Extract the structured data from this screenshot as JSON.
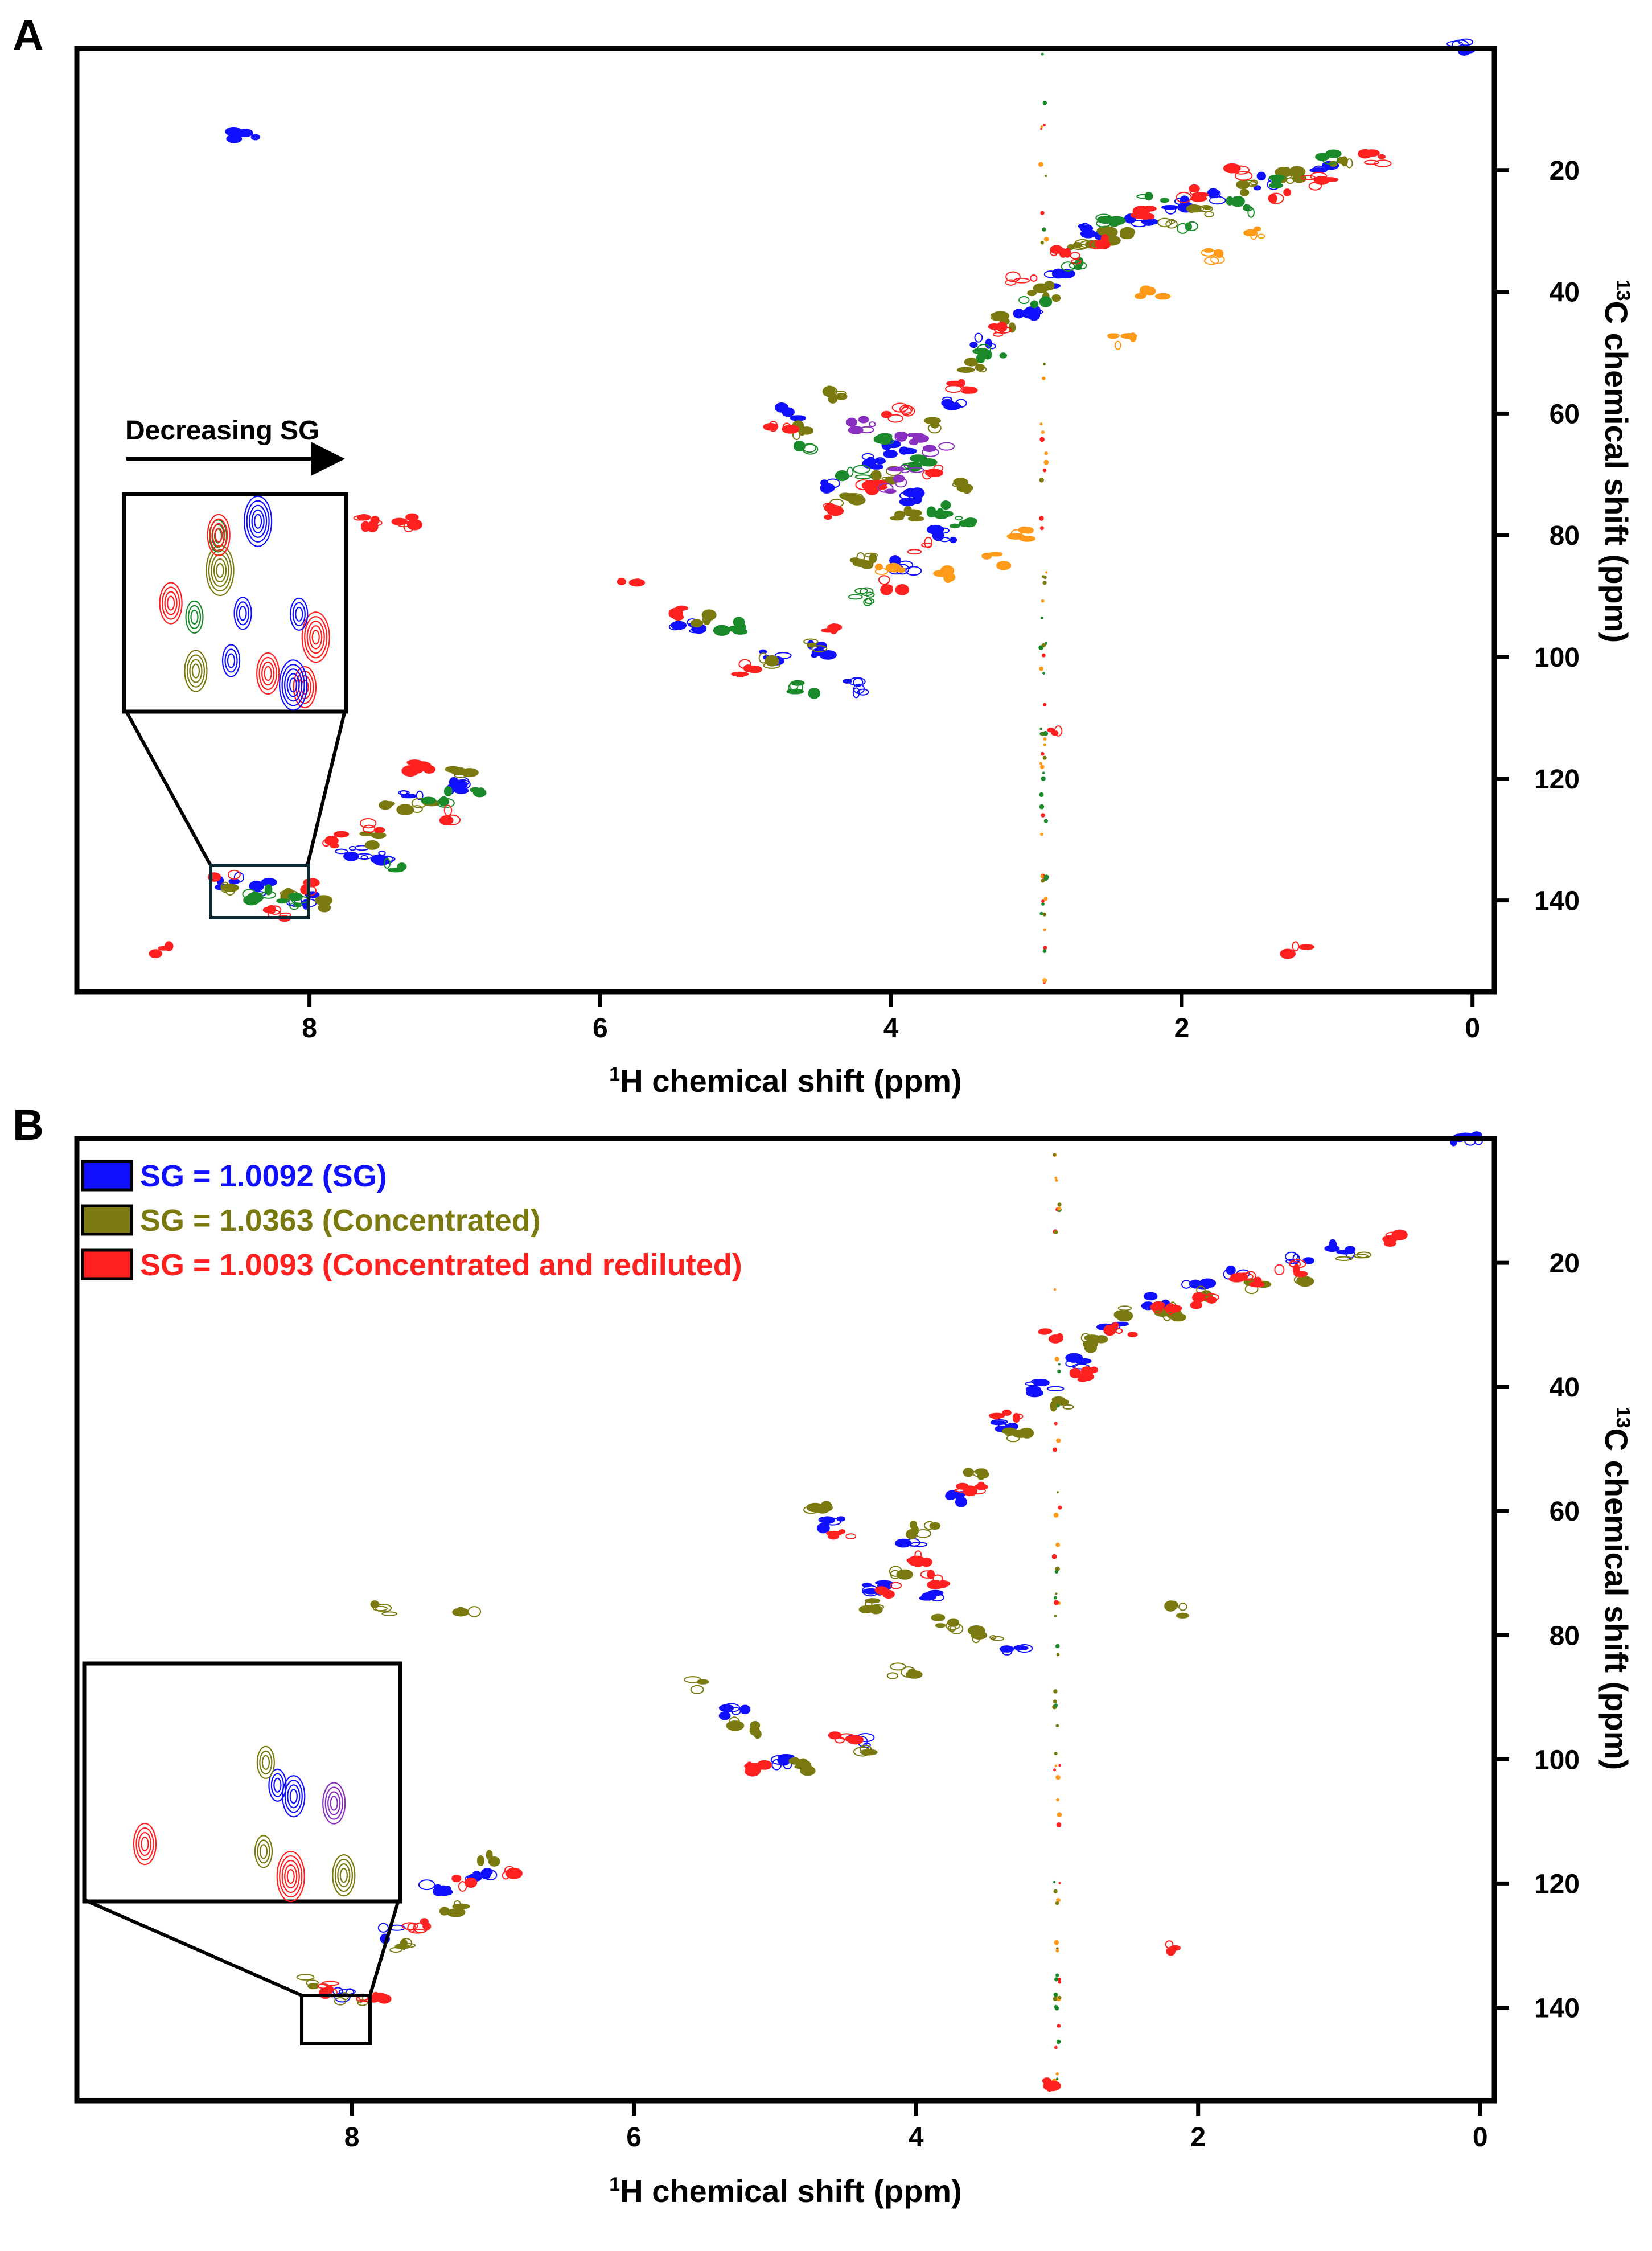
{
  "colors": {
    "blue": "#1010ff",
    "olive": "#7a7a10",
    "red": "#ff2020",
    "green": "#1a8a2a",
    "orange": "#ff9a1a",
    "purple": "#8a30c0"
  },
  "chart_data": [
    {
      "type": "scatter",
      "panel": "A",
      "title": "",
      "xlabel_sup": "1",
      "xlabel": "H chemical shift (ppm)",
      "ylabel_sup": "13",
      "ylabel": "C chemical shift (ppm)",
      "xlim": [
        9.6,
        -0.15
      ],
      "ylim": [
        0,
        155
      ],
      "xticks": [
        8,
        6,
        4,
        2,
        0
      ],
      "yticks": [
        20,
        40,
        60,
        80,
        100,
        120,
        140
      ],
      "annotation": "Decreasing SG",
      "series": [
        {
          "name": "blue contours",
          "color": "#1010ff",
          "points": [
            [
              8.45,
              14
            ],
            [
              8.55,
              137
            ],
            [
              8.3,
              138
            ],
            [
              8.05,
              140
            ],
            [
              7.7,
              132
            ],
            [
              7.5,
              133
            ],
            [
              7.3,
              122
            ],
            [
              7.0,
              121
            ],
            [
              4.7,
              60
            ],
            [
              4.4,
              72
            ],
            [
              4.1,
              68
            ],
            [
              3.95,
              66
            ],
            [
              3.85,
              74
            ],
            [
              3.6,
              58
            ],
            [
              3.35,
              48
            ],
            [
              3.05,
              44
            ],
            [
              2.85,
              38
            ],
            [
              2.6,
              30
            ],
            [
              2.3,
              28
            ],
            [
              2.0,
              26
            ],
            [
              1.7,
              24
            ],
            [
              1.4,
              22
            ],
            [
              1.0,
              20
            ],
            [
              5.4,
              95
            ],
            [
              4.8,
              100
            ],
            [
              4.5,
              99
            ],
            [
              4.25,
              105
            ],
            [
              3.65,
              80
            ],
            [
              3.9,
              85
            ],
            [
              0.1,
              0
            ]
          ]
        },
        {
          "name": "olive contours",
          "color": "#7a7a10",
          "points": [
            [
              8.5,
              138
            ],
            [
              8.2,
              139
            ],
            [
              7.9,
              141
            ],
            [
              7.6,
              130
            ],
            [
              7.4,
              125
            ],
            [
              7.2,
              124
            ],
            [
              6.95,
              119
            ],
            [
              4.65,
              63
            ],
            [
              4.3,
              74
            ],
            [
              4.05,
              70
            ],
            [
              3.9,
              77
            ],
            [
              3.75,
              62
            ],
            [
              3.45,
              52
            ],
            [
              3.2,
              45
            ],
            [
              2.95,
              40
            ],
            [
              2.7,
              33
            ],
            [
              2.45,
              31
            ],
            [
              2.15,
              29
            ],
            [
              1.85,
              27
            ],
            [
              1.55,
              23
            ],
            [
              1.25,
              21
            ],
            [
              0.9,
              19
            ],
            [
              5.3,
              94
            ],
            [
              4.9,
              101
            ],
            [
              4.55,
              98
            ],
            [
              4.4,
              57
            ],
            [
              3.55,
              72
            ],
            [
              4.2,
              84
            ]
          ]
        },
        {
          "name": "green contours",
          "color": "#1a8a2a",
          "points": [
            [
              8.35,
              139
            ],
            [
              8.1,
              140
            ],
            [
              7.45,
              134
            ],
            [
              7.1,
              123
            ],
            [
              6.8,
              122
            ],
            [
              4.6,
              66
            ],
            [
              4.25,
              70
            ],
            [
              4.0,
              64
            ],
            [
              3.8,
              68
            ],
            [
              3.65,
              76
            ],
            [
              3.3,
              50
            ],
            [
              3.0,
              42
            ],
            [
              2.75,
              36
            ],
            [
              2.5,
              28
            ],
            [
              2.2,
              25
            ],
            [
              1.95,
              30
            ],
            [
              1.6,
              26
            ],
            [
              1.3,
              22
            ],
            [
              0.95,
              18
            ],
            [
              5.1,
              95
            ],
            [
              4.6,
              105
            ],
            [
              4.2,
              90
            ],
            [
              3.5,
              78
            ]
          ]
        },
        {
          "name": "red contours",
          "color": "#ff2020",
          "points": [
            [
              9.0,
              148
            ],
            [
              8.6,
              136
            ],
            [
              8.25,
              142
            ],
            [
              7.95,
              138
            ],
            [
              7.8,
              130
            ],
            [
              7.55,
              128
            ],
            [
              7.25,
              118
            ],
            [
              7.05,
              126
            ],
            [
              4.75,
              62
            ],
            [
              4.45,
              76
            ],
            [
              4.15,
              72
            ],
            [
              3.95,
              60
            ],
            [
              3.7,
              70
            ],
            [
              3.5,
              56
            ],
            [
              3.25,
              46
            ],
            [
              3.1,
              38
            ],
            [
              2.8,
              34
            ],
            [
              2.55,
              32
            ],
            [
              2.25,
              27
            ],
            [
              1.9,
              24
            ],
            [
              1.65,
              20
            ],
            [
              1.35,
              24
            ],
            [
              1.05,
              22
            ],
            [
              0.7,
              18
            ],
            [
              5.8,
              88
            ],
            [
              5.45,
              93
            ],
            [
              5.0,
              102
            ],
            [
              4.35,
              95
            ],
            [
              3.8,
              82
            ],
            [
              7.6,
              78
            ],
            [
              7.3,
              78
            ],
            [
              2.9,
              112
            ],
            [
              1.2,
              148
            ],
            [
              4.0,
              88
            ]
          ]
        },
        {
          "name": "orange contours",
          "color": "#ff9a1a",
          "points": [
            [
              3.3,
              84
            ],
            [
              4.0,
              86
            ],
            [
              2.2,
              40
            ],
            [
              1.8,
              34
            ],
            [
              3.1,
              80
            ],
            [
              2.4,
              48
            ],
            [
              1.5,
              30
            ],
            [
              3.6,
              86
            ]
          ]
        },
        {
          "name": "purple contours",
          "color": "#8a30c0",
          "points": [
            [
              4.0,
              72
            ],
            [
              3.85,
              64
            ],
            [
              4.2,
              62
            ],
            [
              3.7,
              66
            ],
            [
              3.9,
              70
            ]
          ]
        }
      ]
    },
    {
      "type": "scatter",
      "panel": "B",
      "title": "",
      "xlabel_sup": "1",
      "xlabel": "H chemical shift (ppm)",
      "ylabel_sup": "13",
      "ylabel": "C chemical shift (ppm)",
      "xlim": [
        9.95,
        -0.1
      ],
      "ylim": [
        0,
        155
      ],
      "xticks": [
        8,
        6,
        4,
        2,
        0
      ],
      "yticks": [
        20,
        40,
        60,
        80,
        100,
        120,
        140
      ],
      "legend": [
        {
          "label": "SG = 1.0092 (SG)",
          "color": "#1010ff"
        },
        {
          "label": "SG = 1.0363 (Concentrated)",
          "color": "#7a7a10"
        },
        {
          "label": "SG = 1.0093 (Concentrated and rediluted)",
          "color": "#ff2020"
        }
      ],
      "series": [
        {
          "name": "SG = 1.0092 (SG)",
          "color": "#1010ff",
          "points": [
            [
              8.1,
              138
            ],
            [
              7.7,
              128
            ],
            [
              7.4,
              121
            ],
            [
              7.1,
              119
            ],
            [
              4.6,
              62
            ],
            [
              4.3,
              72
            ],
            [
              4.05,
              66
            ],
            [
              3.9,
              74
            ],
            [
              3.7,
              58
            ],
            [
              3.4,
              46
            ],
            [
              3.1,
              40
            ],
            [
              2.85,
              36
            ],
            [
              2.6,
              30
            ],
            [
              2.3,
              26
            ],
            [
              2.0,
              24
            ],
            [
              1.7,
              22
            ],
            [
              1.3,
              20
            ],
            [
              1.0,
              18
            ],
            [
              5.3,
              92
            ],
            [
              5.0,
              100
            ],
            [
              4.4,
              97
            ],
            [
              3.3,
              83
            ],
            [
              0.1,
              0
            ]
          ]
        },
        {
          "name": "SG = 1.0363 (Concentrated)",
          "color": "#7a7a10",
          "points": [
            [
              8.3,
              136
            ],
            [
              8.0,
              139
            ],
            [
              7.6,
              130
            ],
            [
              7.3,
              124
            ],
            [
              7.0,
              116
            ],
            [
              4.7,
              60
            ],
            [
              4.35,
              75
            ],
            [
              4.1,
              70
            ],
            [
              3.95,
              63
            ],
            [
              3.8,
              78
            ],
            [
              3.55,
              54
            ],
            [
              3.3,
              48
            ],
            [
              3.0,
              43
            ],
            [
              2.75,
              33
            ],
            [
              2.5,
              28
            ],
            [
              2.2,
              28
            ],
            [
              1.9,
              25
            ],
            [
              1.6,
              24
            ],
            [
              1.2,
              22
            ],
            [
              0.9,
              19
            ],
            [
              5.6,
              88
            ],
            [
              5.2,
              95
            ],
            [
              4.8,
              101
            ],
            [
              4.35,
              99
            ],
            [
              4.1,
              86
            ],
            [
              3.5,
              80
            ],
            [
              7.8,
              76
            ],
            [
              7.2,
              76
            ],
            [
              2.15,
              76
            ]
          ]
        },
        {
          "name": "SG = 1.0093 (Concentrated and rediluted)",
          "color": "#ff2020",
          "points": [
            [
              8.2,
              137
            ],
            [
              7.85,
              138
            ],
            [
              7.5,
              127
            ],
            [
              7.2,
              120
            ],
            [
              6.9,
              118
            ],
            [
              4.55,
              64
            ],
            [
              4.2,
              73
            ],
            [
              4.0,
              68
            ],
            [
              3.85,
              71
            ],
            [
              3.6,
              56
            ],
            [
              3.35,
              45
            ],
            [
              3.05,
              32
            ],
            [
              2.8,
              38
            ],
            [
              2.55,
              31
            ],
            [
              2.25,
              27
            ],
            [
              1.95,
              26
            ],
            [
              1.65,
              23
            ],
            [
              1.35,
              21
            ],
            [
              0.65,
              16
            ],
            [
              5.1,
              101
            ],
            [
              4.5,
              96
            ],
            [
              2.2,
              130
            ],
            [
              3.1,
              152
            ]
          ]
        }
      ]
    }
  ]
}
